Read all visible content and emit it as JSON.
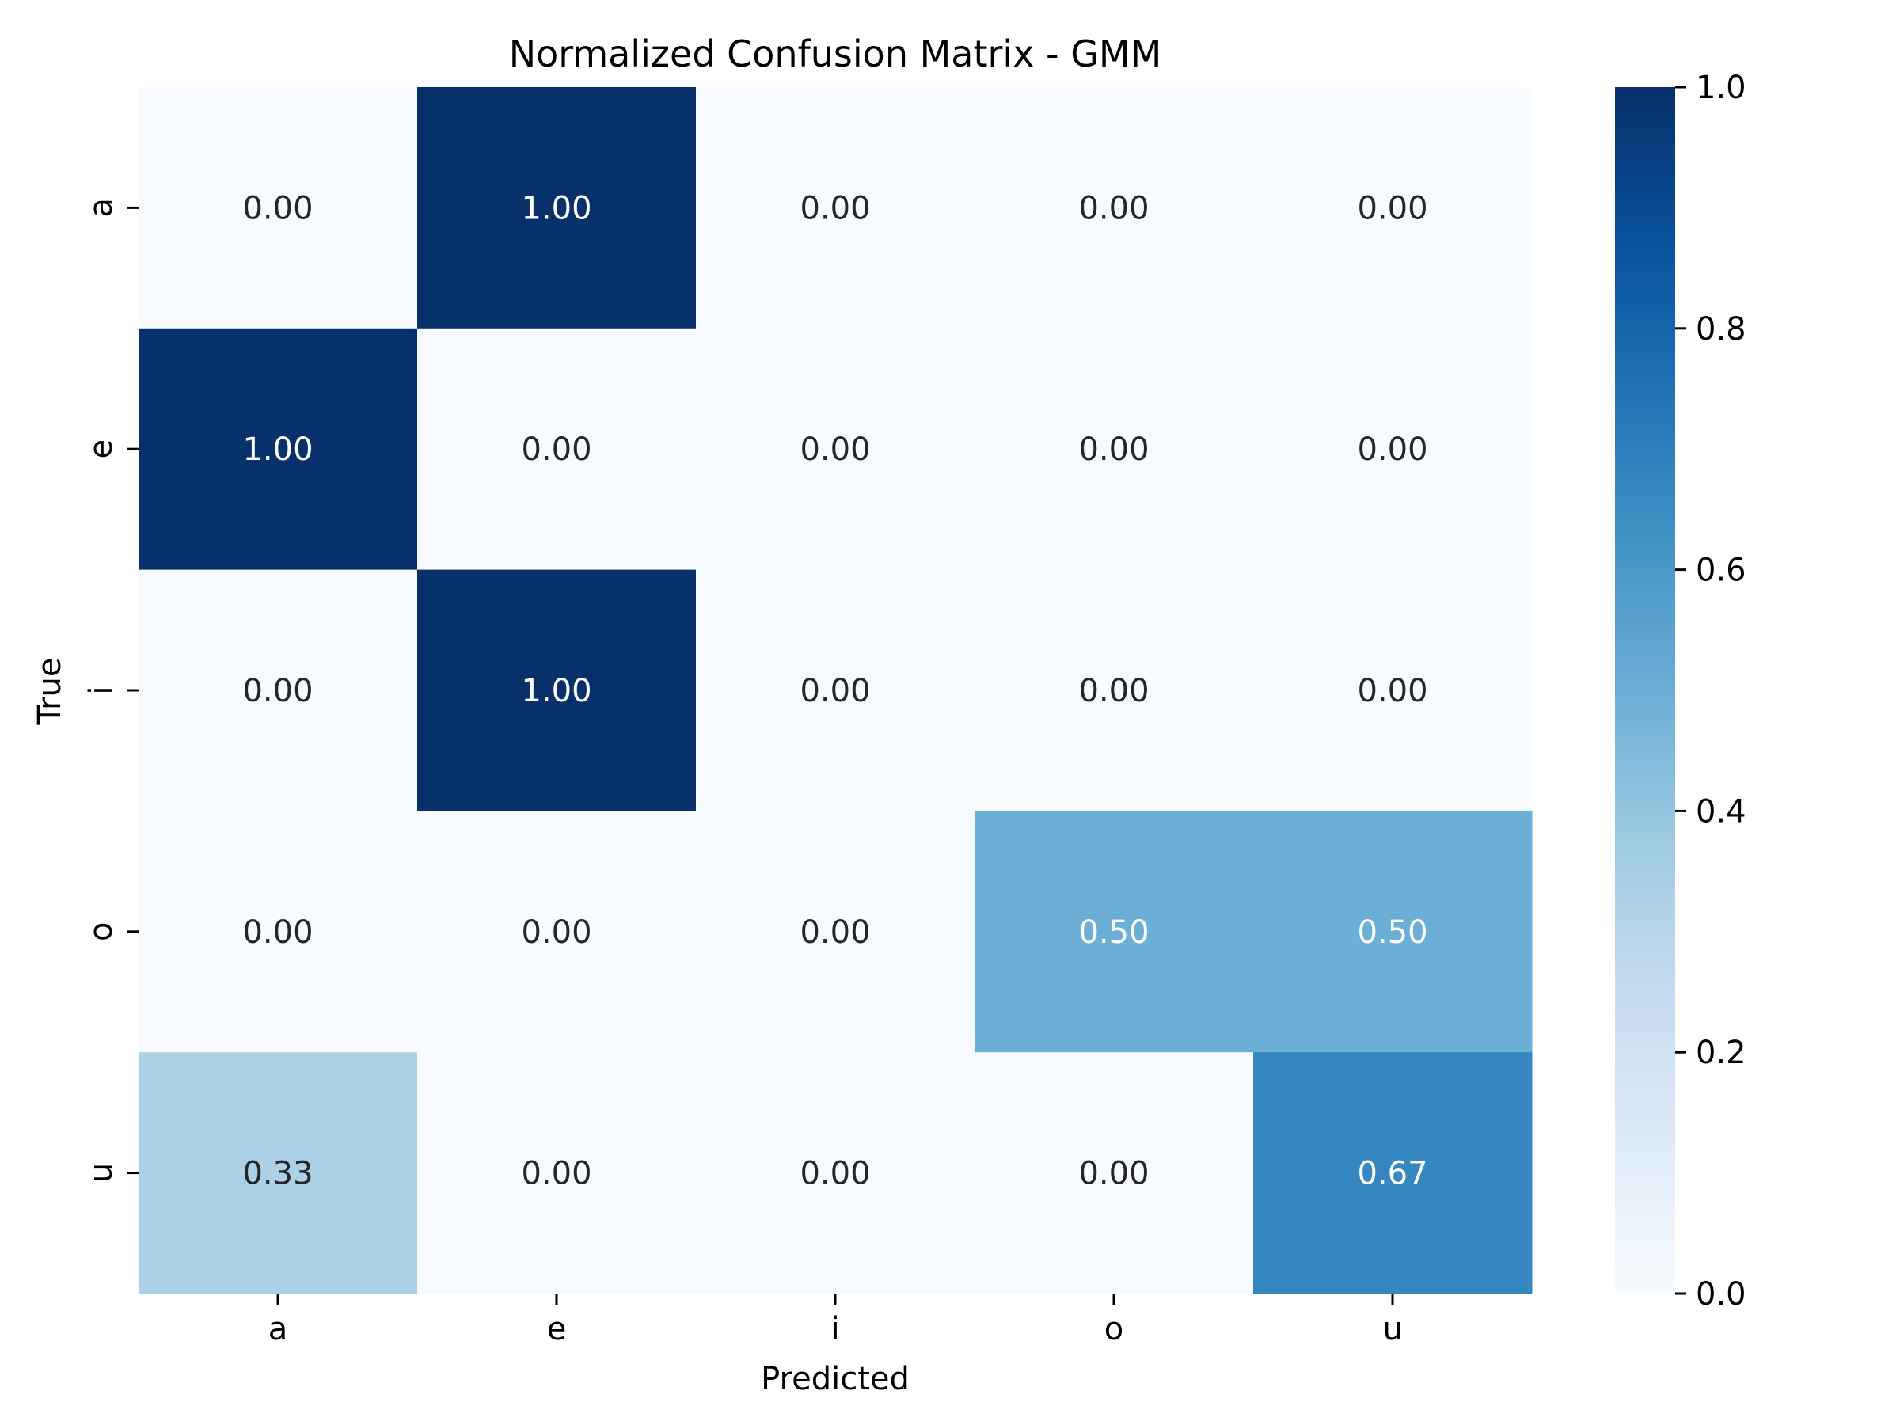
{
  "chart_data": {
    "type": "heatmap",
    "title": "Normalized Confusion Matrix - GMM",
    "xlabel": "Predicted",
    "ylabel": "True",
    "x_categories": [
      "a",
      "e",
      "i",
      "o",
      "u"
    ],
    "y_categories": [
      "a",
      "e",
      "i",
      "o",
      "u"
    ],
    "values": [
      [
        0.0,
        1.0,
        0.0,
        0.0,
        0.0
      ],
      [
        1.0,
        0.0,
        0.0,
        0.0,
        0.0
      ],
      [
        0.0,
        1.0,
        0.0,
        0.0,
        0.0
      ],
      [
        0.0,
        0.0,
        0.0,
        0.5,
        0.5
      ],
      [
        0.33,
        0.0,
        0.0,
        0.0,
        0.67
      ]
    ],
    "value_format": "0.00",
    "colormap": "Blues",
    "colorbar": {
      "range": [
        0.0,
        1.0
      ],
      "ticks": [
        0.0,
        0.2,
        0.4,
        0.6,
        0.8,
        1.0
      ],
      "tick_labels": [
        "0.0",
        "0.2",
        "0.4",
        "0.6",
        "0.8",
        "1.0"
      ]
    }
  }
}
